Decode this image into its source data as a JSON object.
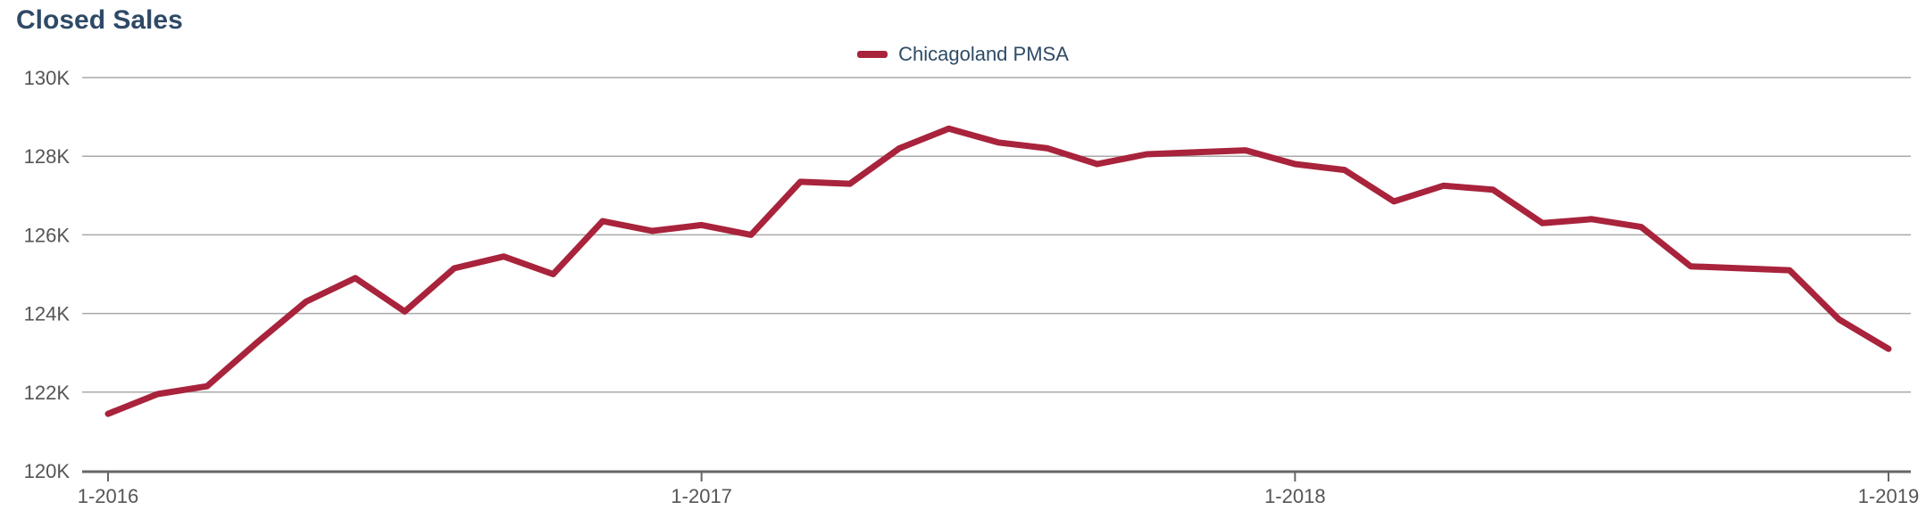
{
  "chart_data": {
    "type": "line",
    "title": "Closed Sales",
    "xlabel": "",
    "ylabel": "",
    "ylim": [
      120000,
      130000
    ],
    "y_ticks": [
      120000,
      122000,
      124000,
      126000,
      128000,
      130000
    ],
    "y_tick_labels": [
      "120K",
      "122K",
      "124K",
      "126K",
      "128K",
      "130K"
    ],
    "x_tick_labels": [
      "1-2016",
      "1-2017",
      "1-2018",
      "1-2019"
    ],
    "x": [
      "1-2016",
      "2-2016",
      "3-2016",
      "4-2016",
      "5-2016",
      "6-2016",
      "7-2016",
      "8-2016",
      "9-2016",
      "10-2016",
      "11-2016",
      "12-2016",
      "1-2017",
      "2-2017",
      "3-2017",
      "4-2017",
      "5-2017",
      "6-2017",
      "7-2017",
      "8-2017",
      "9-2017",
      "10-2017",
      "11-2017",
      "12-2017",
      "1-2018",
      "2-2018",
      "3-2018",
      "4-2018",
      "5-2018",
      "6-2018",
      "7-2018",
      "8-2018",
      "9-2018",
      "10-2018",
      "11-2018",
      "12-2018",
      "1-2019"
    ],
    "series": [
      {
        "name": "Chicagoland PMSA",
        "color": "#a8233b",
        "values": [
          121450,
          121950,
          122150,
          123250,
          124300,
          124900,
          124050,
          125150,
          125450,
          125000,
          126350,
          126100,
          126250,
          126000,
          127350,
          127300,
          128200,
          128700,
          128350,
          128200,
          127800,
          128050,
          128100,
          128150,
          127800,
          127650,
          126850,
          127250,
          127150,
          126300,
          126400,
          126200,
          125200,
          125150,
          125100,
          123850,
          123100
        ]
      }
    ],
    "grid": true,
    "legend_position": "top-center"
  }
}
